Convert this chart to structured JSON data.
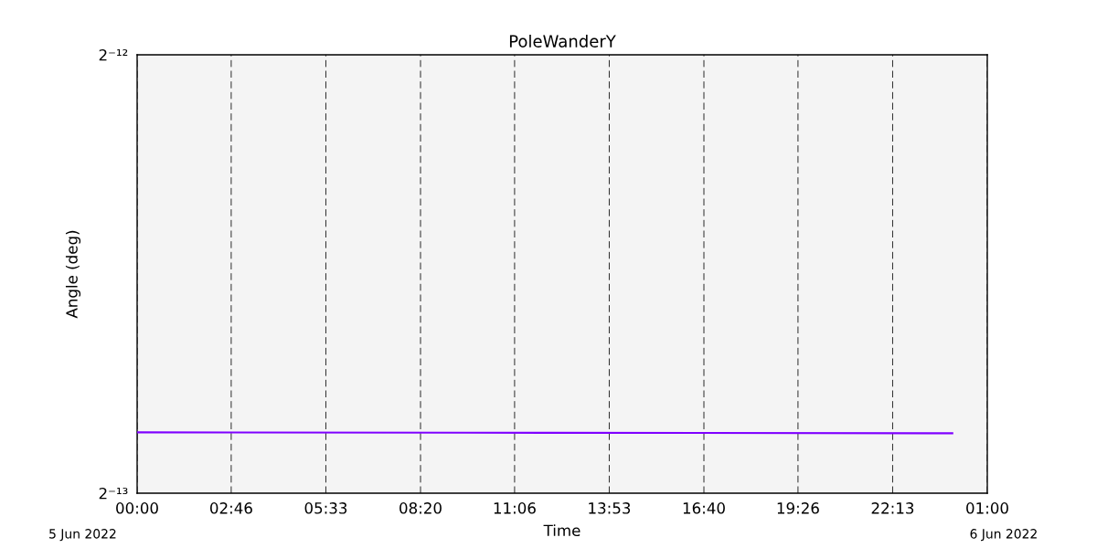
{
  "chart_data": {
    "type": "line",
    "title": "PoleWanderY",
    "xlabel": "Time",
    "ylabel": "Angle (deg)",
    "annotations": [
      "5 Jun 2022",
      "6 Jun 2022"
    ],
    "x": [
      "2022-06-05T00:00",
      "2022-06-05T12:00",
      "2022-06-06T00:00"
    ],
    "series": [
      {
        "color": "#7f00ff",
        "values": [
          0.0001344,
          0.0001343,
          0.0001342
        ]
      }
    ],
    "xlim": [
      "2022-06-05T00:00",
      "2022-06-06T01:00"
    ],
    "xticks": [
      {
        "value": "2022-06-05T00:00",
        "label": "00:00"
      },
      {
        "value": "2022-06-05T02:46",
        "label": "02:46"
      },
      {
        "value": "2022-06-05T05:33",
        "label": "05:33"
      },
      {
        "value": "2022-06-05T08:20",
        "label": "08:20"
      },
      {
        "value": "2022-06-05T11:06",
        "label": "11:06"
      },
      {
        "value": "2022-06-05T13:53",
        "label": "13:53"
      },
      {
        "value": "2022-06-05T16:40",
        "label": "16:40"
      },
      {
        "value": "2022-06-05T19:26",
        "label": "19:26"
      },
      {
        "value": "2022-06-05T22:13",
        "label": "22:13"
      },
      {
        "value": "2022-06-06T01:00",
        "label": "01:00"
      }
    ],
    "ylim": [
      0.0001220703125,
      0.000244140625
    ],
    "yticks": [
      {
        "value": 0.0001220703125,
        "label": "2⁻¹³"
      },
      {
        "value": 0.000244140625,
        "label": "2⁻¹²"
      }
    ],
    "log": "y",
    "grid": "x",
    "marker": "none",
    "line_style": "solid"
  }
}
